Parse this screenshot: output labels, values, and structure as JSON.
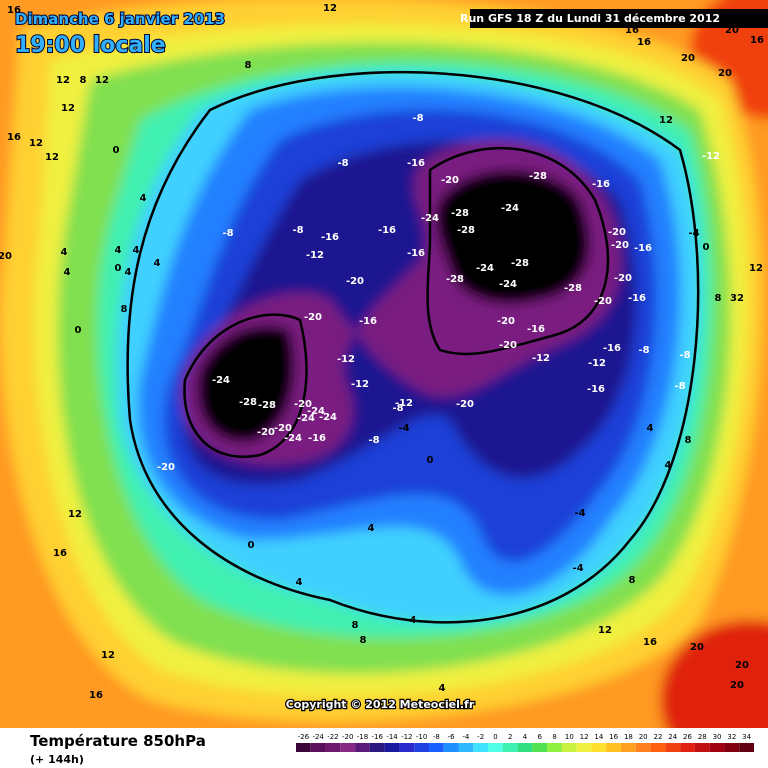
{
  "header": {
    "date": "Dimanche 6 janvier 2013",
    "time": "19:00 locale",
    "run": "Run GFS 18 Z du Lundi 31 décembre 2012"
  },
  "map": {
    "copyright": "Copyright © 2012 Meteociel.fr",
    "contour_labels": [
      16,
      12,
      8,
      12,
      8,
      12,
      12,
      16,
      12,
      12,
      0,
      4,
      20,
      4,
      4,
      4,
      4,
      0,
      4,
      8,
      0,
      4,
      -8,
      -8,
      -16,
      -12,
      -8,
      -8,
      -16,
      -20,
      -24,
      -28,
      -28,
      -24,
      -28,
      -16,
      -12,
      12,
      16,
      16,
      20,
      20,
      20,
      20,
      16,
      -16,
      -16,
      -20,
      -28,
      -24,
      -28,
      -24,
      -28,
      -20,
      -20,
      -16,
      -4,
      0,
      12,
      -20,
      -20,
      -16,
      -20,
      -16,
      -20,
      -12,
      -16,
      -12,
      -8,
      -8,
      -8,
      -16,
      8,
      32,
      -20,
      -16,
      -12,
      -12,
      -24,
      -28,
      -28,
      -20,
      -24,
      -24,
      -24,
      -20,
      -24,
      -20,
      -16,
      -8,
      -12,
      -4,
      -8,
      -20,
      -20,
      0,
      4,
      4,
      8,
      12,
      16,
      0,
      4,
      4,
      -4,
      -4,
      8,
      12,
      8,
      8,
      4,
      12,
      16,
      16,
      20,
      20,
      20,
      4
    ]
  },
  "legend": {
    "title": "Température 850hPa",
    "lead_time": "(+ 144h)",
    "ticks": [
      -26,
      -24,
      -22,
      -20,
      -18,
      -16,
      -14,
      -12,
      -10,
      -8,
      -6,
      -4,
      -2,
      0,
      2,
      4,
      6,
      8,
      10,
      12,
      14,
      16,
      18,
      20,
      22,
      24,
      26,
      28,
      30,
      32,
      34
    ],
    "colors": [
      "#3a063a",
      "#5a105a",
      "#6e186e",
      "#862a86",
      "#5a1a7a",
      "#2a1a80",
      "#1a1aa0",
      "#2a2acc",
      "#2040e0",
      "#1a60ff",
      "#2090ff",
      "#30b8ff",
      "#40e0ff",
      "#50ffe8",
      "#40f0b0",
      "#30e080",
      "#50e050",
      "#90f040",
      "#c8f040",
      "#f0f040",
      "#ffe030",
      "#ffc020",
      "#ffa020",
      "#ff8020",
      "#ff6010",
      "#f04010",
      "#e02010",
      "#c01010",
      "#a00010",
      "#800010",
      "#600010"
    ]
  }
}
